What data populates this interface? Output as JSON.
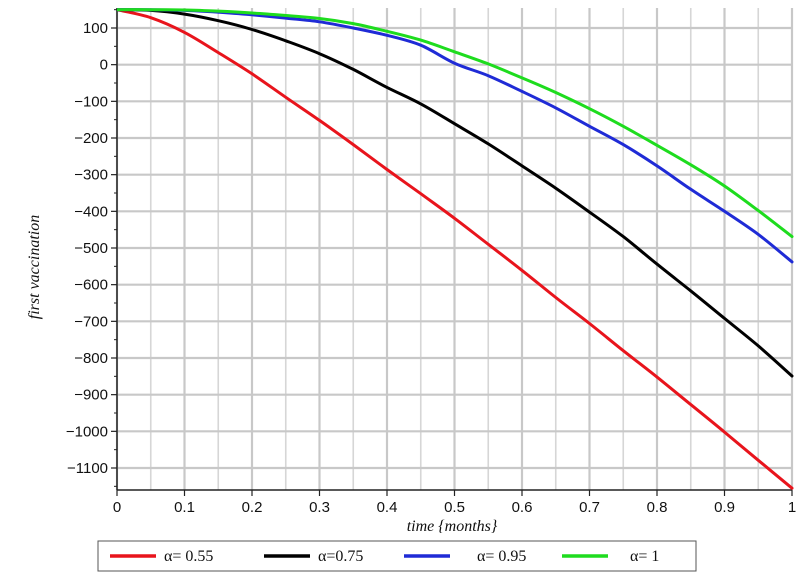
{
  "chart_data": {
    "type": "line",
    "xlabel": "time {months}",
    "ylabel": "first vaccination",
    "xlim": [
      0,
      1
    ],
    "ylim": [
      -1160,
      150
    ],
    "xticks": [
      0,
      0.1,
      0.2,
      0.3,
      0.4,
      0.5,
      0.6,
      0.7,
      0.8,
      0.9,
      1
    ],
    "xtick_labels": [
      "0",
      "0.1",
      "0.2",
      "0.3",
      "0.4",
      "0.5",
      "0.6",
      "0.7",
      "0.8",
      "0.9",
      "1"
    ],
    "yticks": [
      100,
      0,
      -100,
      -200,
      -300,
      -400,
      -500,
      -600,
      -700,
      -800,
      -900,
      -1000,
      -1100
    ],
    "ytick_labels": [
      "100",
      "0",
      "−100",
      "−200",
      "−300",
      "−400",
      "−500",
      "−600",
      "−700",
      "−800",
      "−900",
      "−1000",
      "−1100"
    ],
    "grid": true,
    "legend_position": "bottom",
    "series": [
      {
        "name": "α= 0.55",
        "color": "#e8141c",
        "x": [
          0,
          0.05,
          0.1,
          0.15,
          0.2,
          0.25,
          0.3,
          0.35,
          0.4,
          0.45,
          0.5,
          0.55,
          0.6,
          0.65,
          0.7,
          0.75,
          0.8,
          0.85,
          0.9,
          0.95,
          1
        ],
        "y": [
          150,
          128,
          88,
          33,
          -25,
          -89,
          -152,
          -218,
          -286,
          -352,
          -419,
          -490,
          -561,
          -635,
          -706,
          -780,
          -852,
          -927,
          -1002,
          -1079,
          -1155
        ]
      },
      {
        "name": "α=0.75",
        "color": "#000000",
        "x": [
          0,
          0.05,
          0.1,
          0.15,
          0.2,
          0.25,
          0.3,
          0.35,
          0.4,
          0.45,
          0.5,
          0.55,
          0.6,
          0.65,
          0.7,
          0.75,
          0.8,
          0.85,
          0.9,
          0.95,
          1
        ],
        "y": [
          150,
          148,
          138,
          120,
          96,
          65,
          30,
          -13,
          -62,
          -107,
          -161,
          -216,
          -276,
          -337,
          -402,
          -469,
          -544,
          -617,
          -692,
          -767,
          -849
        ]
      },
      {
        "name": "α= 0.95",
        "color": "#1f2bd6",
        "x": [
          0,
          0.05,
          0.1,
          0.15,
          0.2,
          0.25,
          0.3,
          0.35,
          0.4,
          0.45,
          0.5,
          0.55,
          0.6,
          0.65,
          0.7,
          0.75,
          0.8,
          0.85,
          0.9,
          0.95,
          1
        ],
        "y": [
          150,
          150,
          148,
          143,
          136,
          127,
          117,
          100,
          80,
          53,
          4,
          -30,
          -73,
          -118,
          -168,
          -218,
          -276,
          -340,
          -400,
          -463,
          -538
        ]
      },
      {
        "name": "α= 1",
        "color": "#1edc1e",
        "x": [
          0,
          0.05,
          0.1,
          0.15,
          0.2,
          0.25,
          0.3,
          0.35,
          0.4,
          0.45,
          0.5,
          0.55,
          0.6,
          0.65,
          0.7,
          0.75,
          0.8,
          0.85,
          0.9,
          0.95,
          1
        ],
        "y": [
          150,
          150,
          149,
          146,
          141,
          134,
          126,
          112,
          91,
          67,
          35,
          2,
          -36,
          -76,
          -120,
          -168,
          -220,
          -273,
          -331,
          -398,
          -469
        ]
      }
    ]
  }
}
